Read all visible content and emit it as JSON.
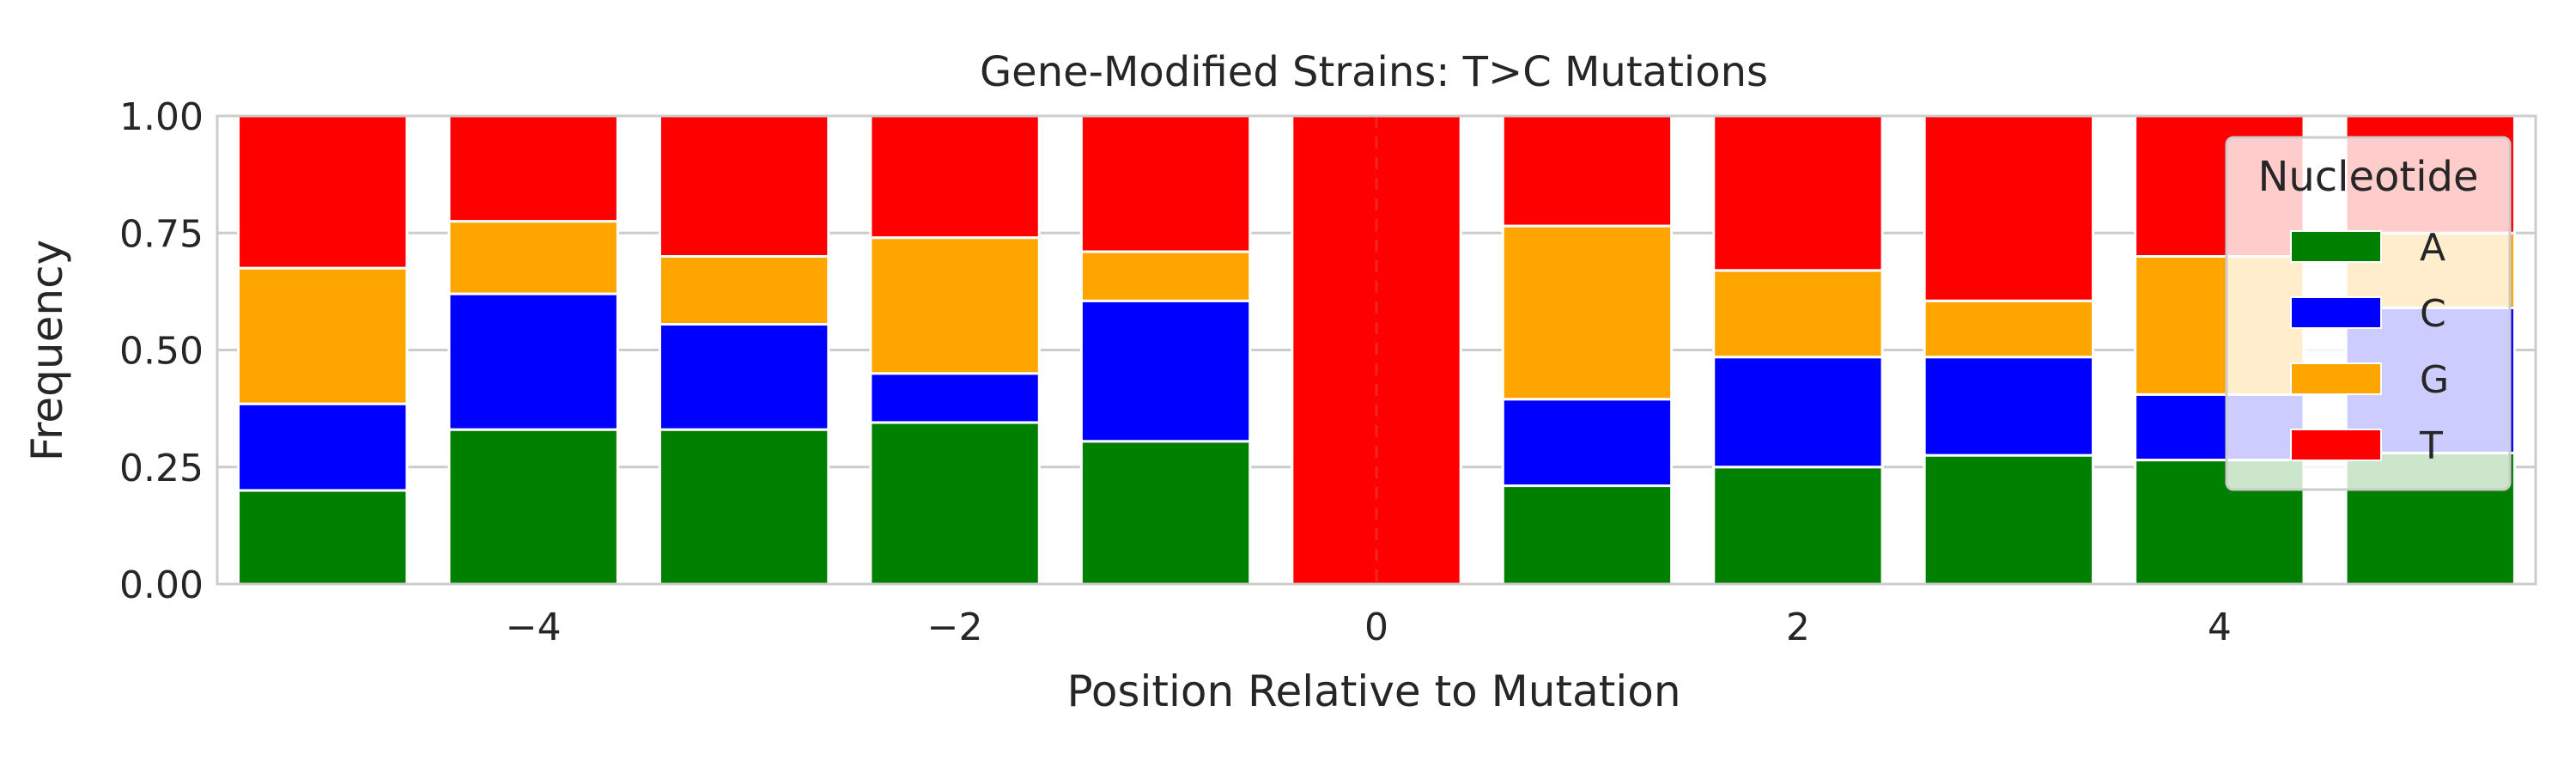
{
  "chart_data": {
    "type": "bar",
    "stacked": true,
    "title": "Gene-Modified Strains: T>C Mutations",
    "xlabel": "Position Relative to Mutation",
    "ylabel": "Frequency",
    "x": [
      -5,
      -4,
      -3,
      -2,
      -1,
      0,
      1,
      2,
      3,
      4,
      5
    ],
    "xlim": [
      -5.5,
      5.5
    ],
    "ylim": [
      0,
      1
    ],
    "xticks": [
      -4,
      -2,
      0,
      2,
      4
    ],
    "xtick_labels": [
      "−4",
      "−2",
      "0",
      "2",
      "4"
    ],
    "yticks": [
      0,
      0.25,
      0.5,
      0.75,
      1.0
    ],
    "ytick_labels": [
      "0.00",
      "0.25",
      "0.50",
      "0.75",
      "1.00"
    ],
    "grid": true,
    "reference_line": {
      "x": 0,
      "style": "dashed"
    },
    "series": [
      {
        "name": "A",
        "color": "#008000",
        "values": [
          0.2,
          0.33,
          0.33,
          0.345,
          0.305,
          0.0,
          0.21,
          0.25,
          0.275,
          0.265,
          0.28
        ]
      },
      {
        "name": "C",
        "color": "#0000ff",
        "values": [
          0.185,
          0.29,
          0.225,
          0.105,
          0.3,
          0.0,
          0.185,
          0.235,
          0.21,
          0.14,
          0.31
        ]
      },
      {
        "name": "G",
        "color": "#ffa500",
        "values": [
          0.29,
          0.155,
          0.145,
          0.29,
          0.105,
          0.0,
          0.37,
          0.185,
          0.12,
          0.295,
          0.16
        ]
      },
      {
        "name": "T",
        "color": "#ff0000",
        "values": [
          0.325,
          0.225,
          0.3,
          0.26,
          0.29,
          1.0,
          0.235,
          0.33,
          0.395,
          0.3,
          0.25
        ]
      }
    ],
    "legend": {
      "title": "Nucleotide",
      "position": "top-right"
    }
  }
}
